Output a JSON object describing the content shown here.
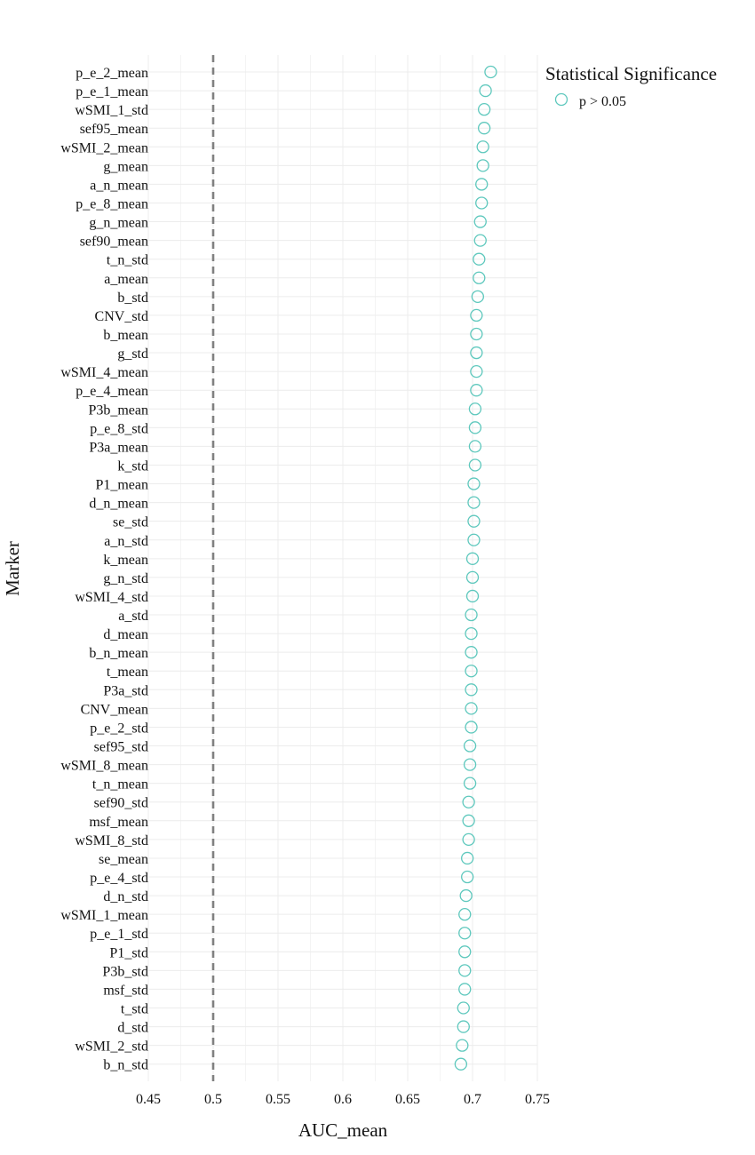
{
  "chart_data": {
    "type": "scatter",
    "xlabel": "AUC_mean",
    "ylabel": "Marker",
    "xlim": [
      0.45,
      0.75
    ],
    "xticks": [
      "0.45",
      "0.5",
      "0.55",
      "0.6",
      "0.65",
      "0.7",
      "0.75"
    ],
    "reference_line": {
      "x": 0.5,
      "style": "dashed",
      "color": "#808080"
    },
    "grid": true,
    "legend": {
      "title": "Statistical Significance",
      "position": "top-right",
      "entries": [
        {
          "label": "p > 0.05",
          "color": "#5ec8bd",
          "marker": "open-circle"
        }
      ]
    },
    "point_color": "#5ec8bd",
    "categories": [
      "p_e_2_mean",
      "p_e_1_mean",
      "wSMI_1_std",
      "sef95_mean",
      "wSMI_2_mean",
      "g_mean",
      "a_n_mean",
      "p_e_8_mean",
      "g_n_mean",
      "sef90_mean",
      "t_n_std",
      "a_mean",
      "b_std",
      "CNV_std",
      "b_mean",
      "g_std",
      "wSMI_4_mean",
      "p_e_4_mean",
      "P3b_mean",
      "p_e_8_std",
      "P3a_mean",
      "k_std",
      "P1_mean",
      "d_n_mean",
      "se_std",
      "a_n_std",
      "k_mean",
      "g_n_std",
      "wSMI_4_std",
      "a_std",
      "d_mean",
      "b_n_mean",
      "t_mean",
      "P3a_std",
      "CNV_mean",
      "p_e_2_std",
      "sef95_std",
      "wSMI_8_mean",
      "t_n_mean",
      "sef90_std",
      "msf_mean",
      "wSMI_8_std",
      "se_mean",
      "p_e_4_std",
      "d_n_std",
      "wSMI_1_mean",
      "p_e_1_std",
      "P1_std",
      "P3b_std",
      "msf_std",
      "t_std",
      "d_std",
      "wSMI_2_std",
      "b_n_std"
    ],
    "values": [
      0.714,
      0.71,
      0.709,
      0.709,
      0.708,
      0.708,
      0.707,
      0.707,
      0.706,
      0.706,
      0.705,
      0.705,
      0.704,
      0.703,
      0.703,
      0.703,
      0.703,
      0.703,
      0.702,
      0.702,
      0.702,
      0.702,
      0.701,
      0.701,
      0.701,
      0.701,
      0.7,
      0.7,
      0.7,
      0.699,
      0.699,
      0.699,
      0.699,
      0.699,
      0.699,
      0.699,
      0.698,
      0.698,
      0.698,
      0.697,
      0.697,
      0.697,
      0.696,
      0.696,
      0.695,
      0.694,
      0.694,
      0.694,
      0.694,
      0.694,
      0.693,
      0.693,
      0.692,
      0.691
    ]
  }
}
